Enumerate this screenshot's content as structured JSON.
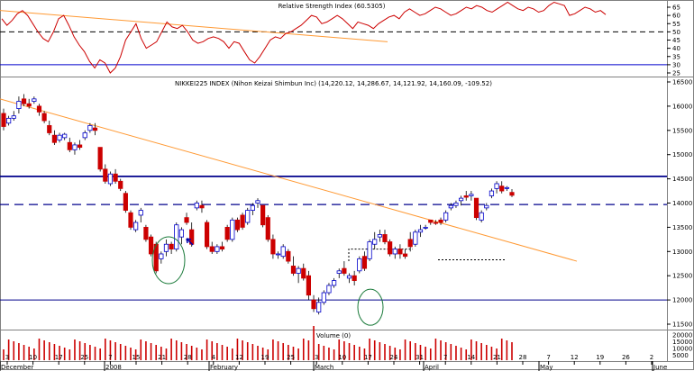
{
  "rsi_panel": {
    "title": "Relative Strength Index (60.5305)",
    "y_ticks": [
      "65",
      "60",
      "55",
      "50",
      "45",
      "40",
      "35",
      "30",
      "25"
    ],
    "levels": [
      50,
      30
    ],
    "line_color": "#cc0000",
    "values": [
      58,
      54,
      57,
      61,
      63,
      60,
      55,
      50,
      46,
      44,
      50,
      58,
      60,
      54,
      47,
      42,
      38,
      32,
      28,
      33,
      31,
      25,
      28,
      35,
      45,
      50,
      55,
      46,
      40,
      42,
      44,
      50,
      56,
      53,
      52,
      54,
      50,
      45,
      43,
      44,
      46,
      47,
      46,
      44,
      40,
      44,
      43,
      38,
      33,
      31,
      35,
      40,
      45,
      47,
      46,
      49,
      50,
      52,
      54,
      57,
      60,
      59,
      55,
      56,
      58,
      60,
      58,
      55,
      52,
      56,
      55,
      54,
      52,
      55,
      57,
      59,
      60,
      58,
      62,
      64,
      62,
      60,
      61,
      63,
      65,
      64,
      62,
      60,
      61,
      63,
      65,
      64,
      66,
      65,
      63,
      62,
      64,
      66,
      68,
      66,
      64,
      63,
      65,
      64,
      62,
      63,
      66,
      68,
      67,
      66,
      60,
      61,
      63,
      65,
      64,
      62,
      63,
      60.5
    ]
  },
  "price_panel": {
    "title": "NIKKEI225 INDEX (Nihon Keizai Shimbun Inc) (14,220.12, 14,286.67, 14,121.92, 14,160.09, -109.52)",
    "y_ticks": [
      "16500",
      "16000",
      "15500",
      "15000",
      "14500",
      "14000",
      "13500",
      "13000",
      "12500",
      "12000",
      "11500"
    ],
    "levels": [
      14550,
      13970,
      12000
    ],
    "up_color": "#0000cc",
    "down_color": "#cc0000",
    "trendline_color": "#ff9933",
    "level_color": "#00008b"
  },
  "volume_panel": {
    "title": "Volume (0)",
    "y_ticks": [
      "20000",
      "15000",
      "10000",
      "5000"
    ]
  },
  "x_axis": {
    "day_labels": [
      "3",
      "10",
      "17",
      "25",
      "7",
      "15",
      "21",
      "28",
      "4",
      "12",
      "19",
      "25",
      "3",
      "10",
      "17",
      "24",
      "31",
      "7",
      "14",
      "21",
      "28",
      "7",
      "12",
      "19",
      "26",
      "2"
    ],
    "month_labels": [
      "December",
      "2008",
      "February",
      "March",
      "April",
      "May",
      "June"
    ]
  },
  "chart_data": {
    "type": "candlestick",
    "title": "NIKKEI225 INDEX (Nihon Keizai Shimbun Inc) (14,220.12, 14,286.67, 14,121.92, 14,160.09, -109.52)",
    "ohlc": [
      [
        15850,
        15950,
        15500,
        15580
      ],
      [
        15650,
        15800,
        15600,
        15750
      ],
      [
        15750,
        15900,
        15700,
        15800
      ],
      [
        15950,
        16200,
        15850,
        16100
      ],
      [
        16150,
        16250,
        16000,
        16050
      ],
      [
        16050,
        16150,
        15950,
        16000
      ],
      [
        16100,
        16200,
        16050,
        16150
      ],
      [
        16000,
        16050,
        15800,
        15880
      ],
      [
        15850,
        15900,
        15650,
        15700
      ],
      [
        15600,
        15700,
        15400,
        15450
      ],
      [
        15400,
        15500,
        15200,
        15250
      ],
      [
        15300,
        15450,
        15250,
        15400
      ],
      [
        15350,
        15450,
        15300,
        15420
      ],
      [
        15250,
        15350,
        15050,
        15100
      ],
      [
        15100,
        15250,
        15000,
        15200
      ],
      [
        15200,
        15300,
        15100,
        15150
      ],
      [
        15350,
        15500,
        15300,
        15450
      ],
      [
        15500,
        15650,
        15450,
        15600
      ],
      [
        15550,
        15650,
        15400,
        15500
      ],
      [
        15150,
        15150,
        14650,
        14700
      ],
      [
        14700,
        14800,
        14400,
        14450
      ],
      [
        14400,
        14650,
        14350,
        14600
      ],
      [
        14600,
        14700,
        14400,
        14450
      ],
      [
        14450,
        14500,
        14250,
        14300
      ],
      [
        14200,
        14250,
        13800,
        13850
      ],
      [
        13800,
        13850,
        13450,
        13500
      ],
      [
        13450,
        13650,
        13400,
        13600
      ],
      [
        13750,
        13900,
        13600,
        13850
      ],
      [
        13500,
        13550,
        13200,
        13250
      ],
      [
        13300,
        13350,
        12900,
        12950
      ],
      [
        13150,
        13200,
        12550,
        12600
      ],
      [
        12850,
        13000,
        12750,
        12950
      ],
      [
        13000,
        13250,
        12900,
        13150
      ],
      [
        13150,
        13200,
        12950,
        13050
      ],
      [
        13050,
        13600,
        13000,
        13550
      ],
      [
        13300,
        13500,
        13150,
        13450
      ],
      [
        13700,
        13800,
        13550,
        13600
      ],
      [
        13450,
        13600,
        13100,
        13150
      ],
      [
        13900,
        14050,
        13850,
        14000
      ],
      [
        13950,
        14050,
        13800,
        13900
      ],
      [
        13600,
        13650,
        13050,
        13100
      ],
      [
        13100,
        13200,
        12950,
        13000
      ],
      [
        13000,
        13150,
        12950,
        13100
      ],
      [
        13100,
        13200,
        13000,
        13050
      ],
      [
        13500,
        13550,
        13200,
        13250
      ],
      [
        13250,
        13700,
        13200,
        13650
      ],
      [
        13650,
        13700,
        13400,
        13450
      ],
      [
        13750,
        13800,
        13450,
        13500
      ],
      [
        13600,
        13900,
        13550,
        13850
      ],
      [
        13850,
        14000,
        13750,
        13950
      ],
      [
        14000,
        14100,
        13900,
        14050
      ],
      [
        13950,
        13950,
        13500,
        13550
      ],
      [
        13700,
        13750,
        13200,
        13250
      ],
      [
        13250,
        13350,
        12850,
        12950
      ],
      [
        12950,
        13000,
        12850,
        12950
      ],
      [
        12900,
        13150,
        12850,
        13100
      ],
      [
        13000,
        13050,
        12750,
        12800
      ],
      [
        12700,
        12900,
        12500,
        12550
      ],
      [
        12550,
        12700,
        12350,
        12650
      ],
      [
        12650,
        12750,
        12400,
        12450
      ],
      [
        12500,
        12600,
        12000,
        12100
      ],
      [
        12000,
        12100,
        11750,
        11820
      ],
      [
        11750,
        12050,
        11700,
        11950
      ],
      [
        11950,
        12200,
        11900,
        12150
      ],
      [
        12150,
        12350,
        12100,
        12300
      ],
      [
        12300,
        12450,
        12250,
        12400
      ],
      [
        12550,
        12650,
        12450,
        12600
      ],
      [
        12650,
        12800,
        12500,
        12550
      ],
      [
        12450,
        12550,
        12350,
        12500
      ],
      [
        12500,
        12600,
        12300,
        12400
      ],
      [
        12600,
        12900,
        12550,
        12850
      ],
      [
        12900,
        13000,
        12600,
        12650
      ],
      [
        12850,
        13250,
        12800,
        13200
      ],
      [
        13150,
        13400,
        13050,
        13250
      ],
      [
        13300,
        13450,
        13200,
        13350
      ],
      [
        13350,
        13450,
        13150,
        13200
      ],
      [
        13200,
        13250,
        12900,
        12950
      ],
      [
        12950,
        13100,
        12850,
        13050
      ],
      [
        13050,
        13150,
        12850,
        12950
      ],
      [
        12950,
        13050,
        12850,
        12900
      ],
      [
        13250,
        13400,
        13000,
        13100
      ],
      [
        13150,
        13450,
        13100,
        13400
      ],
      [
        13400,
        13550,
        13300,
        13450
      ],
      [
        13500,
        13550,
        13450,
        13500
      ],
      [
        13650,
        13650,
        13550,
        13600
      ],
      [
        13600,
        13650,
        13550,
        13580
      ],
      [
        13650,
        13700,
        13550,
        13600
      ],
      [
        13650,
        13850,
        13600,
        13800
      ],
      [
        13900,
        14000,
        13850,
        13950
      ],
      [
        13950,
        14050,
        13900,
        14000
      ],
      [
        14050,
        14150,
        13950,
        14100
      ],
      [
        14150,
        14250,
        14050,
        14120
      ],
      [
        14150,
        14250,
        14050,
        14180
      ],
      [
        14100,
        14100,
        13650,
        13700
      ],
      [
        13650,
        13850,
        13600,
        13800
      ],
      [
        13900,
        14000,
        13850,
        13950
      ],
      [
        14150,
        14300,
        14100,
        14250
      ],
      [
        14300,
        14450,
        14200,
        14400
      ],
      [
        14350,
        14450,
        14200,
        14250
      ],
      [
        14300,
        14350,
        14250,
        14320
      ],
      [
        14220,
        14287,
        14122,
        14160
      ]
    ]
  }
}
